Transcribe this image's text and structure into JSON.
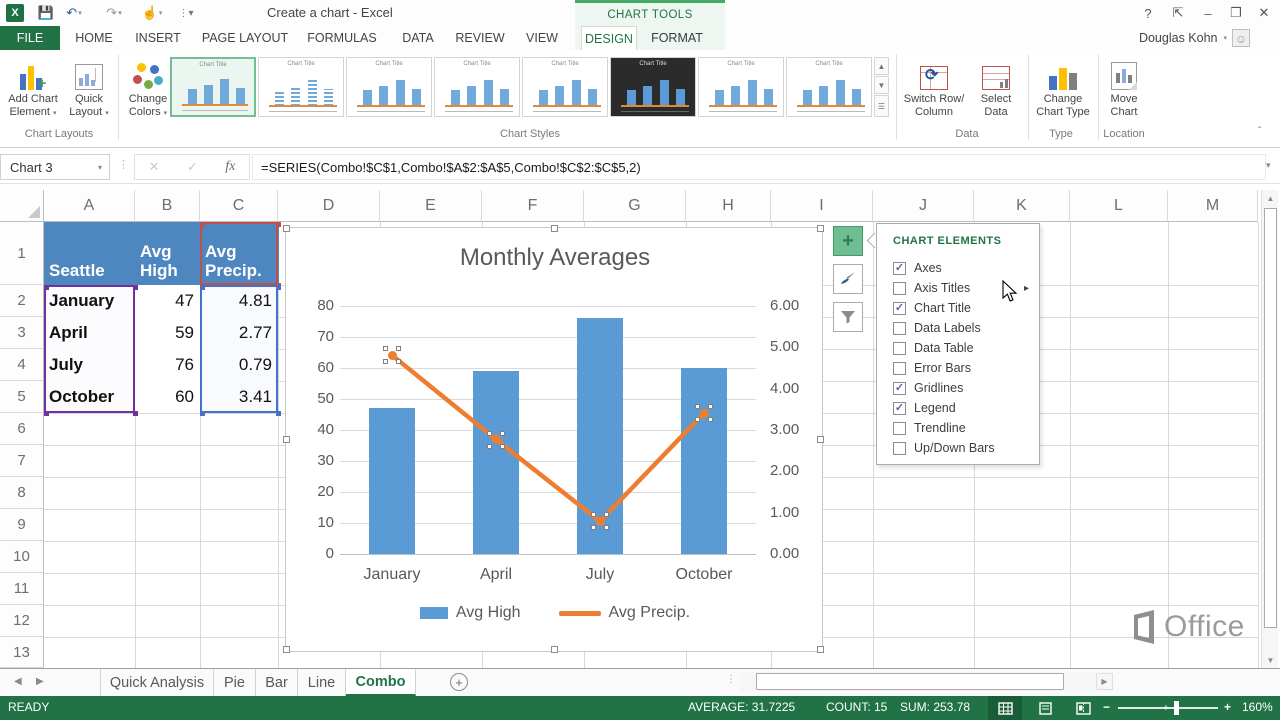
{
  "titlebar": {
    "title": "Create a chart - Excel",
    "contextual": "CHART TOOLS"
  },
  "account": {
    "name": "Douglas Kohn"
  },
  "ribbon_tabs": [
    {
      "label": "FILE",
      "state": "file"
    },
    {
      "label": "HOME",
      "state": "normal"
    },
    {
      "label": "INSERT",
      "state": "normal"
    },
    {
      "label": "PAGE LAYOUT",
      "state": "normal"
    },
    {
      "label": "FORMULAS",
      "state": "normal"
    },
    {
      "label": "DATA",
      "state": "normal"
    },
    {
      "label": "REVIEW",
      "state": "normal"
    },
    {
      "label": "VIEW",
      "state": "normal"
    },
    {
      "label": "DESIGN",
      "state": "active"
    },
    {
      "label": "FORMAT",
      "state": "ctx"
    }
  ],
  "ribbon": {
    "buttons": {
      "add_chart_element": "Add Chart Element",
      "quick_layout": "Quick Layout",
      "change_colors": "Change Colors",
      "switch_row_column": "Switch Row/ Column",
      "select_data": "Select Data",
      "change_chart_type": "Change Chart Type",
      "move_chart": "Move Chart"
    },
    "groups": {
      "chart_layouts": "Chart Layouts",
      "chart_styles": "Chart Styles",
      "data": "Data",
      "type": "Type",
      "location": "Location"
    },
    "chart_styles_gallery": {
      "count": 8,
      "selected_index": 0,
      "dark_index": 5,
      "thumb_title": "Chart Title"
    }
  },
  "formula_bar": {
    "name_box": "Chart 3",
    "fx": "fx",
    "formula": "=SERIES(Combo!$C$1,Combo!$A$2:$A$5,Combo!$C$2:$C$5,2)"
  },
  "grid": {
    "column_letters": [
      "A",
      "B",
      "C",
      "D",
      "E",
      "F",
      "G",
      "H",
      "I",
      "J",
      "K",
      "L",
      "M"
    ],
    "row_numbers": [
      "1",
      "2",
      "3",
      "4",
      "5",
      "6",
      "7",
      "8",
      "9",
      "10",
      "11",
      "12",
      "13"
    ]
  },
  "table": {
    "header": [
      "Seattle",
      "Avg High",
      "Avg Precip."
    ],
    "rows": [
      [
        "January",
        "47",
        "4.81"
      ],
      [
        "April",
        "59",
        "2.77"
      ],
      [
        "July",
        "76",
        "0.79"
      ],
      [
        "October",
        "60",
        "3.41"
      ]
    ],
    "header_fill": "#4E86C0",
    "category_border": "#7030A0",
    "name_border": "#C0504D",
    "value_border": "#4472C4"
  },
  "chart_data": {
    "type": "combo",
    "title": "Monthly Averages",
    "categories": [
      "January",
      "April",
      "July",
      "October"
    ],
    "series": [
      {
        "name": "Avg High",
        "type": "bar",
        "axis": "left",
        "color": "#5B9BD5",
        "values": [
          47,
          59,
          76,
          60
        ]
      },
      {
        "name": "Avg Precip.",
        "type": "line",
        "axis": "right",
        "color": "#ED7D31",
        "values": [
          4.81,
          2.77,
          0.79,
          3.41
        ],
        "selected": true
      }
    ],
    "left_axis": {
      "min": 0,
      "max": 80,
      "step": 10
    },
    "right_axis": {
      "min": 0,
      "max": 6,
      "step": 1,
      "decimals": 2
    },
    "gridlines": true,
    "legend_position": "bottom"
  },
  "chart_elements_panel": {
    "title": "CHART ELEMENTS",
    "items": [
      {
        "label": "Axes",
        "checked": true
      },
      {
        "label": "Axis Titles",
        "checked": false,
        "flyout": true
      },
      {
        "label": "Chart Title",
        "checked": true
      },
      {
        "label": "Data Labels",
        "checked": false
      },
      {
        "label": "Data Table",
        "checked": false
      },
      {
        "label": "Error Bars",
        "checked": false
      },
      {
        "label": "Gridlines",
        "checked": true
      },
      {
        "label": "Legend",
        "checked": true
      },
      {
        "label": "Trendline",
        "checked": false
      },
      {
        "label": "Up/Down Bars",
        "checked": false
      }
    ]
  },
  "sheet_tabs": {
    "tabs": [
      "Quick Analysis",
      "Pie",
      "Bar",
      "Line",
      "Combo"
    ],
    "active": "Combo"
  },
  "status_bar": {
    "mode": "READY",
    "average": "AVERAGE: 31.7225",
    "count": "COUNT: 15",
    "sum": "SUM: 253.78",
    "zoom": "160%"
  },
  "watermark": {
    "text": "Office"
  },
  "colors": {
    "excel_green": "#217346",
    "bar": "#5B9BD5",
    "line": "#ED7D31",
    "header_blue": "#4E86C0"
  }
}
